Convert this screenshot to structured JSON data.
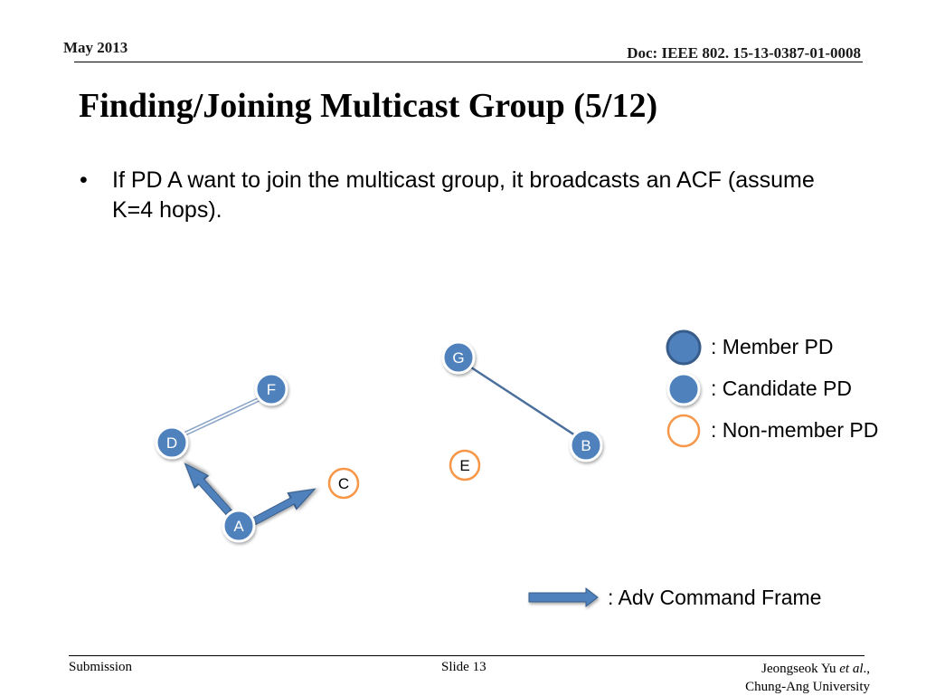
{
  "header": {
    "date": "May 2013",
    "doc": "Doc: IEEE 802. 15-13-0387-01-0008"
  },
  "title": "Finding/Joining Multicast Group (5/12)",
  "bullet": {
    "symbol": "•",
    "text": "If PD A want to join the multicast group, it broadcasts an ACF (assume K=4 hops)."
  },
  "nodes": {
    "A": "A",
    "B": "B",
    "C": "C",
    "D": "D",
    "E": "E",
    "F": "F",
    "G": "G"
  },
  "legend": {
    "member": ": Member PD",
    "candidate": ": Candidate PD",
    "nonmember": ": Non-member PD",
    "adv": ": Adv Command Frame"
  },
  "colors": {
    "fill": "#4f81bd",
    "outline": "#385d8a",
    "nonmember_ring": "#f79646",
    "arrow": "#4f81bd"
  },
  "footer": {
    "submission": "Submission",
    "slide": "Slide 13",
    "author_name": "Jeongseok Yu ",
    "author_etal": "et al",
    "author_suffix": ".,",
    "affiliation": "Chung-Ang University"
  }
}
